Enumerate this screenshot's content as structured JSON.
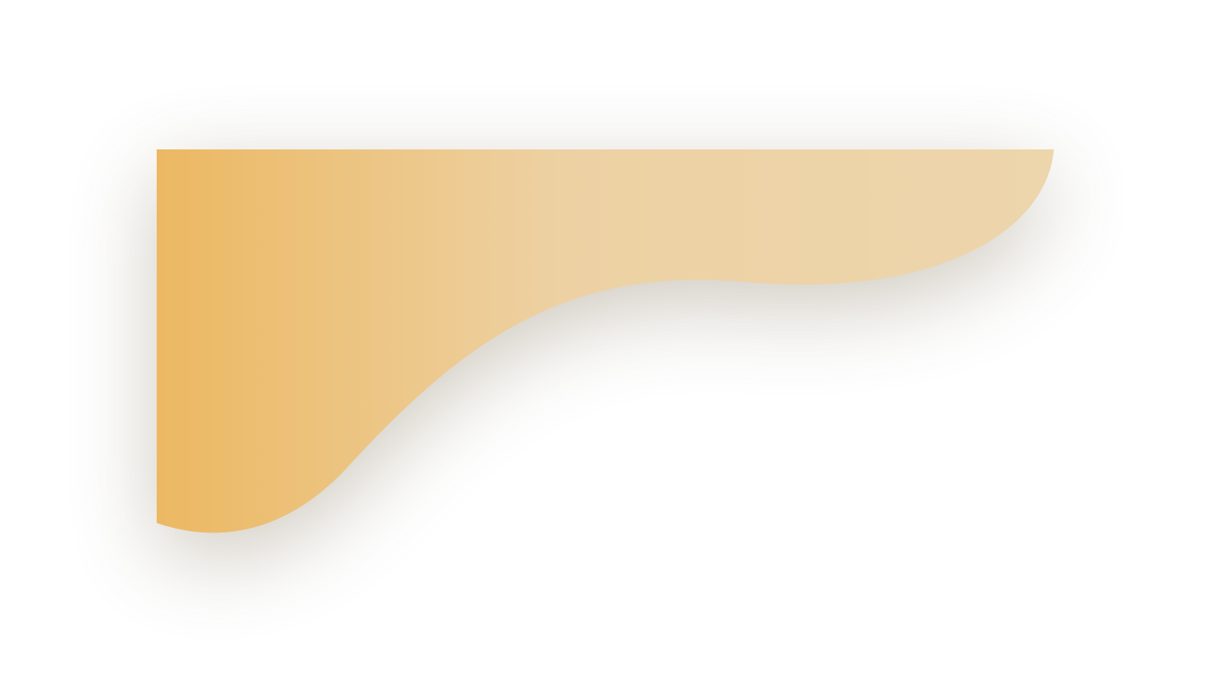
{
  "shape": {
    "gradient_colors": [
      "#ECB862",
      "#EDD1A3",
      "#EDD5AC"
    ],
    "shadow_color": "#6B5A3A",
    "background_color": "#FFFFFF"
  }
}
